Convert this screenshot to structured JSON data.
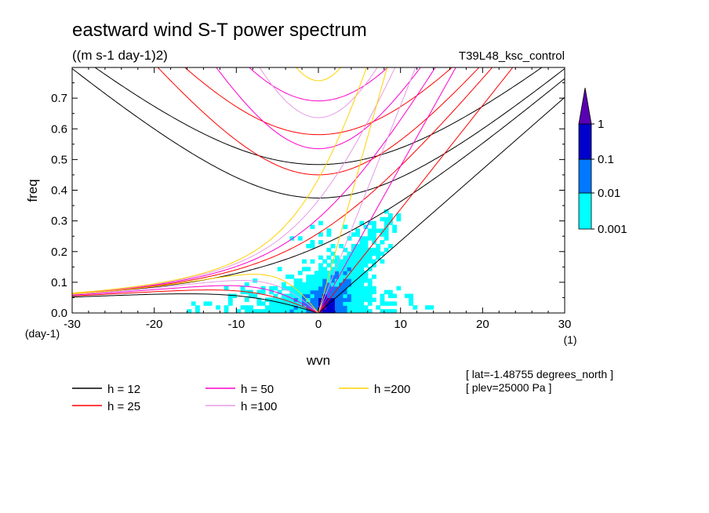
{
  "chart_data": {
    "type": "heatmap",
    "title": "eastward wind S-T power spectrum",
    "subtitle": "((m s-1 day-1)2)",
    "run_label": "T39L48_ksc_control",
    "xlabel": "wvn",
    "ylabel": "freq",
    "x_unit": "(1)",
    "y_unit": "(day-1)",
    "xlim": [
      -30,
      30
    ],
    "ylim": [
      0,
      0.8
    ],
    "x_ticks": [
      -30,
      -20,
      -10,
      0,
      10,
      20,
      30
    ],
    "y_ticks": [
      0.0,
      0.1,
      0.2,
      0.3,
      0.4,
      0.5,
      0.6,
      0.7
    ],
    "x_tick_labels": [
      "-30",
      "-20",
      "-10",
      "0",
      "10",
      "20",
      "30"
    ],
    "y_tick_labels": [
      "0.0",
      "0.1",
      "0.2",
      "0.3",
      "0.4",
      "0.5",
      "0.6",
      "0.7"
    ],
    "colorbar": {
      "levels": [
        0.001,
        0.01,
        0.1,
        1
      ],
      "labels": [
        "0.001",
        "0.01",
        "0.1",
        "1"
      ],
      "colors": [
        "#00ffff",
        "#0078ff",
        "#0000cc",
        "#5a00b4"
      ]
    },
    "dispersion_curves": [
      {
        "h": 12,
        "label": "h = 12",
        "color": "#000000"
      },
      {
        "h": 25,
        "label": "h = 25",
        "color": "#ff0000"
      },
      {
        "h": 50,
        "label": "h = 50",
        "color": "#ff00cc"
      },
      {
        "h": 100,
        "label": "h =100",
        "color": "#e69be6"
      },
      {
        "h": 200,
        "label": "h =200",
        "color": "#ffd200"
      }
    ],
    "annotations": [
      "[ lat=-1.48755 degrees_north ]",
      "[ plev=25000 Pa ]"
    ]
  }
}
